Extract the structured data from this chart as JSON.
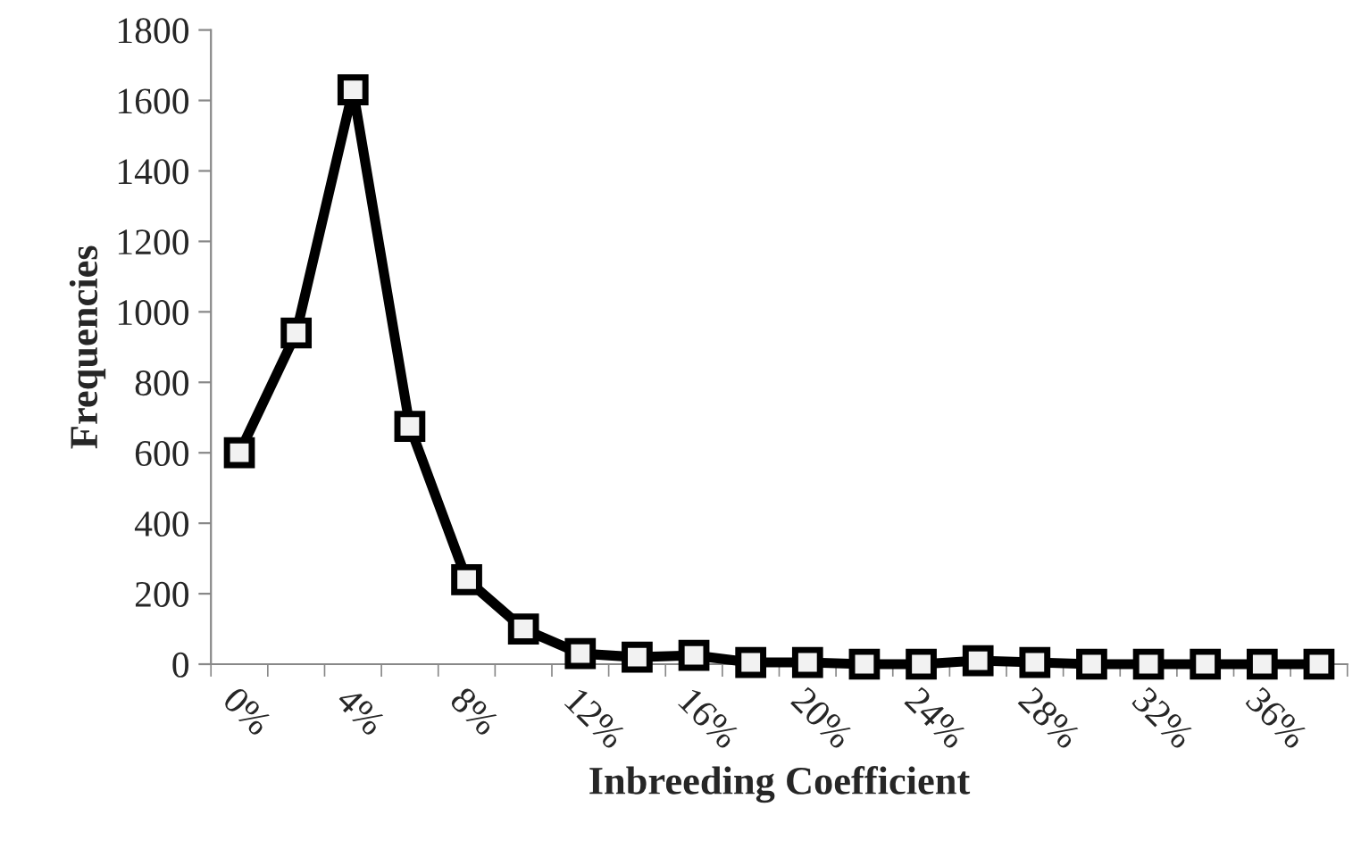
{
  "chart_data": {
    "type": "line",
    "xlabel": "Inbreeding Coefficient",
    "ylabel": "Frequencies",
    "categories": [
      "0%",
      null,
      "4%",
      null,
      "8%",
      null,
      "12%",
      null,
      "16%",
      null,
      "20%",
      null,
      "24%",
      null,
      "28%",
      null,
      "32%",
      null,
      "36%",
      null
    ],
    "series": [
      {
        "color": "#000000",
        "values": [
          600,
          940,
          1630,
          675,
          240,
          100,
          30,
          20,
          25,
          5,
          5,
          0,
          0,
          10,
          5,
          0,
          0,
          0,
          0,
          0
        ]
      }
    ],
    "ylim": [
      0,
      1800
    ],
    "yticks": [
      0,
      200,
      400,
      600,
      800,
      1000,
      1200,
      1400,
      1600,
      1800
    ],
    "marker": "square",
    "line_style": "solid",
    "grid": false,
    "legend": false
  }
}
